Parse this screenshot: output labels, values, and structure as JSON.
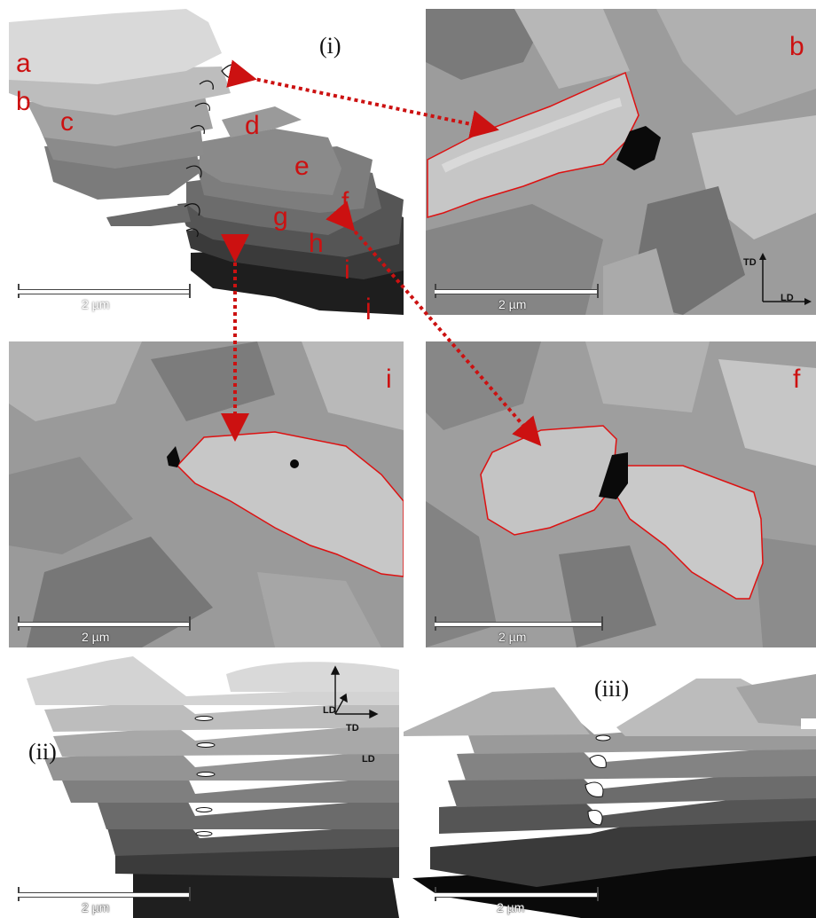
{
  "figure": {
    "panel_i": {
      "roman": "(i)",
      "letters": [
        "a",
        "b",
        "c",
        "d",
        "e",
        "f",
        "g",
        "h",
        "i",
        "j"
      ],
      "scale": "2 µm"
    },
    "panel_b": {
      "letter": "b",
      "scale": "2 µm",
      "axes": {
        "vertical": "TD",
        "horizontal": "LD"
      }
    },
    "panel_i_sem": {
      "letter": "i",
      "scale": "2 µm"
    },
    "panel_f_sem": {
      "letter": "f",
      "scale": "2 µm"
    },
    "panel_ii": {
      "roman": "(ii)",
      "scale": "2 µm",
      "axes": {
        "up": "LD",
        "diag": "TD",
        "right": "LD"
      }
    },
    "panel_iii": {
      "roman": "(iii)",
      "scale": "2 µm"
    },
    "colors": {
      "annotation": "#cc1111",
      "arrow": "#cc1111"
    }
  }
}
